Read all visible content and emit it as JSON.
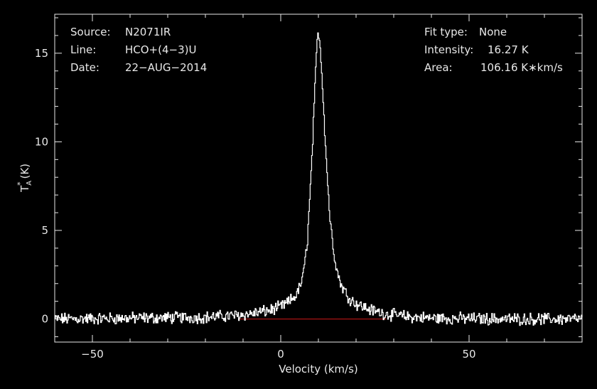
{
  "header_left": {
    "source_label": "Source:",
    "source_value": "N2071IR",
    "line_label": "Line:",
    "line_value": "HCO+(4−3)U",
    "date_label": "Date:",
    "date_value": "22−AUG−2014"
  },
  "header_right": {
    "fit_label": "Fit type:",
    "fit_value": "None",
    "intensity_label": "Intensity:",
    "intensity_value": "16.27 K",
    "area_label": "Area:",
    "area_value": "106.16 K∗km/s"
  },
  "chart_data": {
    "type": "line",
    "xlabel": "Velocity (km/s)",
    "ylabel_main": "T",
    "ylabel_sup": "*",
    "ylabel_sub": "A",
    "ylabel_unit": "(K)",
    "xlim": [
      -60,
      80
    ],
    "ylim": [
      -1.3,
      17.2
    ],
    "x_ticks": [
      -50,
      0,
      50
    ],
    "x_tick_labels": [
      "−50",
      "0",
      "50"
    ],
    "y_ticks": [
      0,
      5,
      10,
      15
    ],
    "y_tick_labels": [
      "0",
      "5",
      "10",
      "15"
    ],
    "baseline": {
      "y": 0,
      "x_range": [
        -11,
        28
      ],
      "color": "#d01818"
    },
    "series": [
      {
        "color": "#ffffff",
        "peak_velocity": 9.9,
        "peak_intensity": 16.27,
        "x": [
          -60,
          -40,
          -20,
          -12,
          -8,
          -4,
          -2,
          0,
          2,
          4,
          5,
          6,
          7,
          8,
          9,
          9.5,
          9.9,
          10.3,
          11,
          12,
          13,
          14,
          15,
          16,
          18,
          20,
          24,
          28,
          34,
          40,
          60,
          80
        ],
        "y": [
          0,
          0.05,
          0.1,
          0.2,
          0.3,
          0.45,
          0.55,
          0.7,
          0.95,
          1.35,
          1.8,
          2.6,
          4.5,
          8.2,
          13.0,
          15.4,
          16.27,
          15.7,
          13.2,
          9.0,
          5.6,
          3.8,
          2.6,
          1.9,
          1.2,
          0.85,
          0.5,
          0.28,
          0.12,
          0.05,
          0,
          0
        ]
      }
    ]
  }
}
